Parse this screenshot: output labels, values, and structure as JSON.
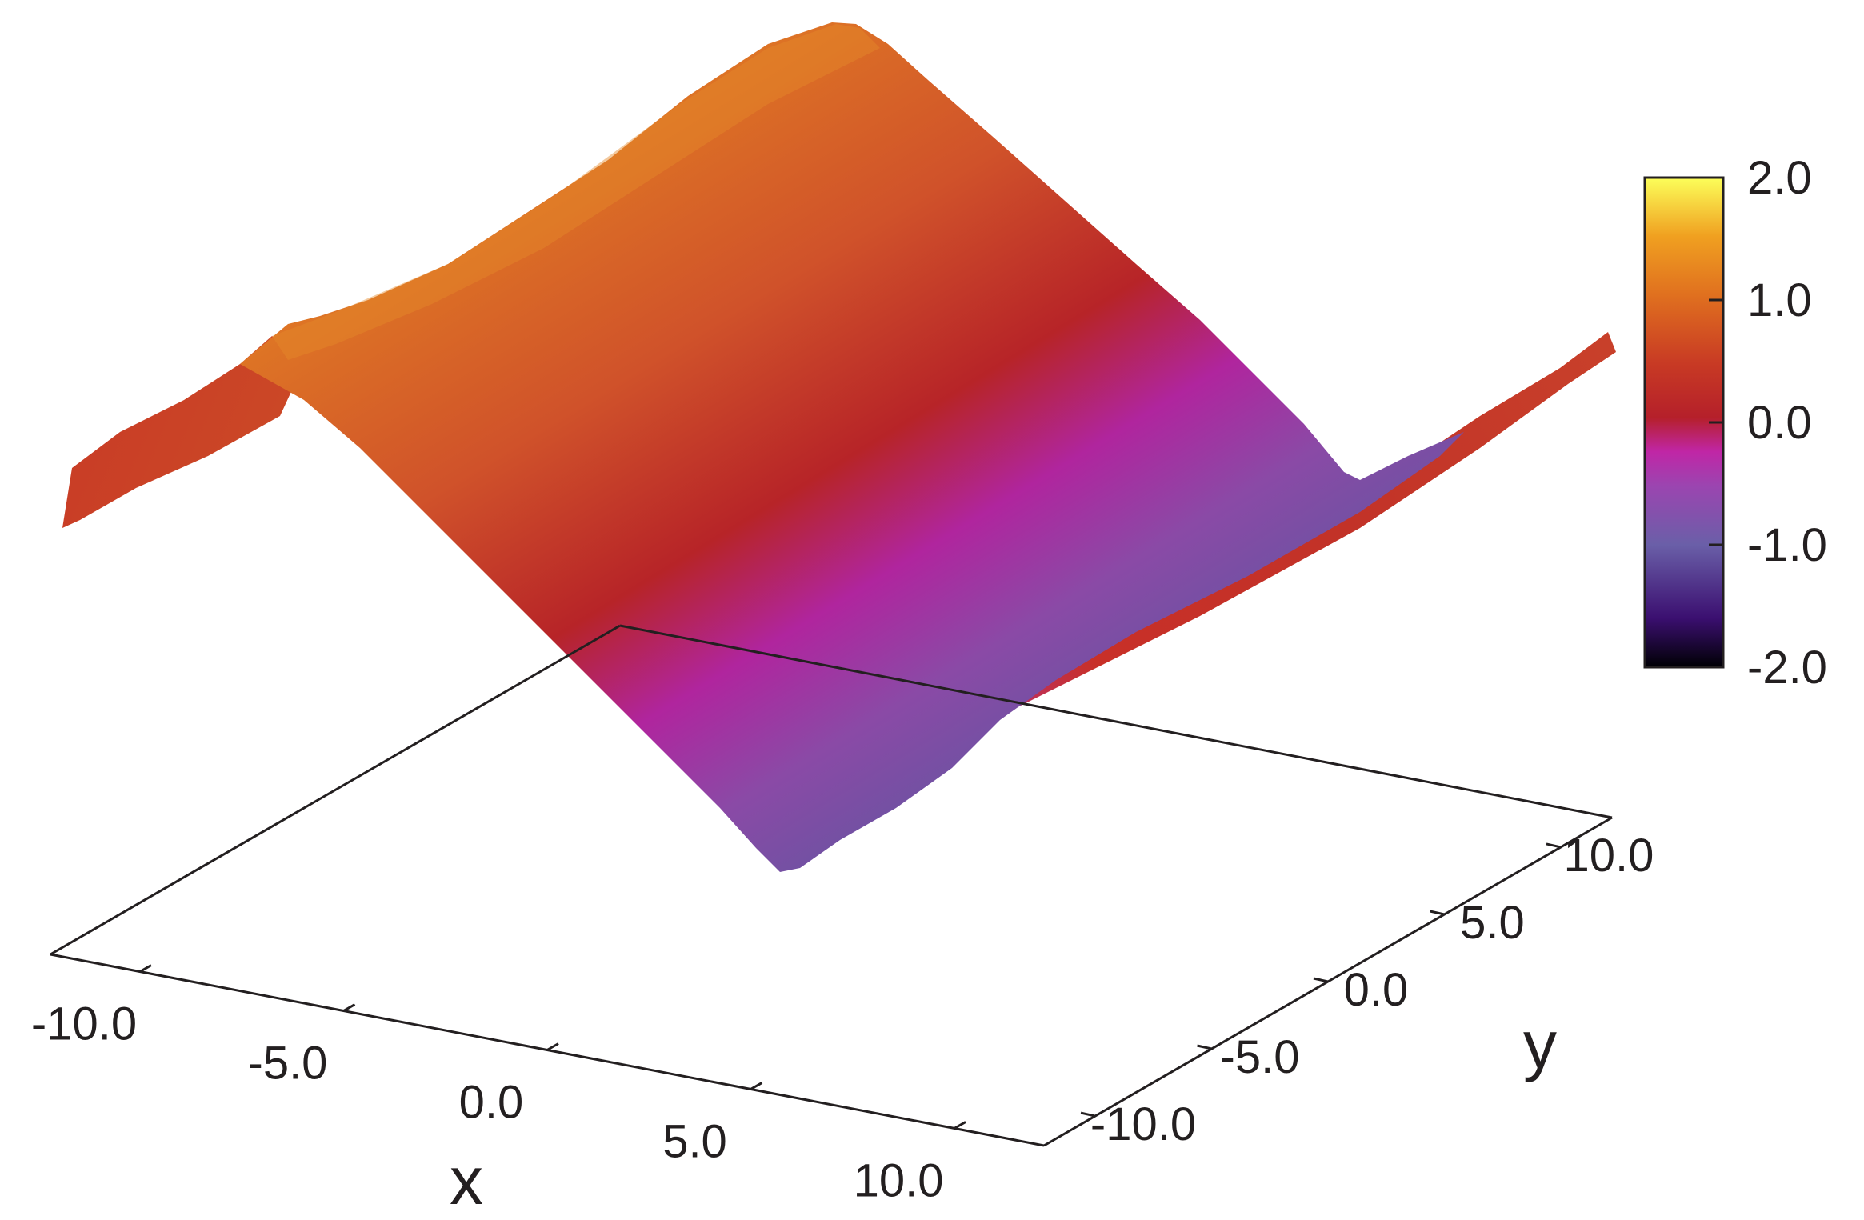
{
  "chart_data": {
    "type": "surface",
    "xlabel": "x",
    "ylabel": "y",
    "xlim": [
      -10.0,
      10.0
    ],
    "ylim": [
      -10.0,
      10.0
    ],
    "zlim": [
      -2.0,
      2.0
    ],
    "x_ticks": [
      "-10.0",
      "-5.0",
      "0.0",
      "5.0",
      "10.0"
    ],
    "y_ticks": [
      "-10.0",
      "-5.0",
      "0.0",
      "5.0",
      "10.0"
    ],
    "colorbar": {
      "ticks": [
        "2.0",
        "1.0",
        "0.0",
        "-1.0",
        "-2.0"
      ],
      "range": [
        -2.0,
        2.0
      ],
      "colors": [
        "#000004",
        "#3b0f70",
        "#6a5fa8",
        "#9b45b0",
        "#c026a6",
        "#b5202a",
        "#c83a24",
        "#e0701f",
        "#f0a020",
        "#fcff5a"
      ]
    },
    "surface_profile": {
      "description_x": [
        -12.0,
        -10.0,
        -8.0,
        -6.0,
        -4.0,
        -2.0,
        0.0,
        2.0,
        4.0,
        6.0,
        8.0,
        10.0,
        12.0
      ],
      "z": [
        0.0,
        0.05,
        0.35,
        1.0,
        1.2,
        0.9,
        0.1,
        -0.8,
        -1.3,
        -0.9,
        -0.1,
        0.0,
        0.0
      ]
    }
  }
}
